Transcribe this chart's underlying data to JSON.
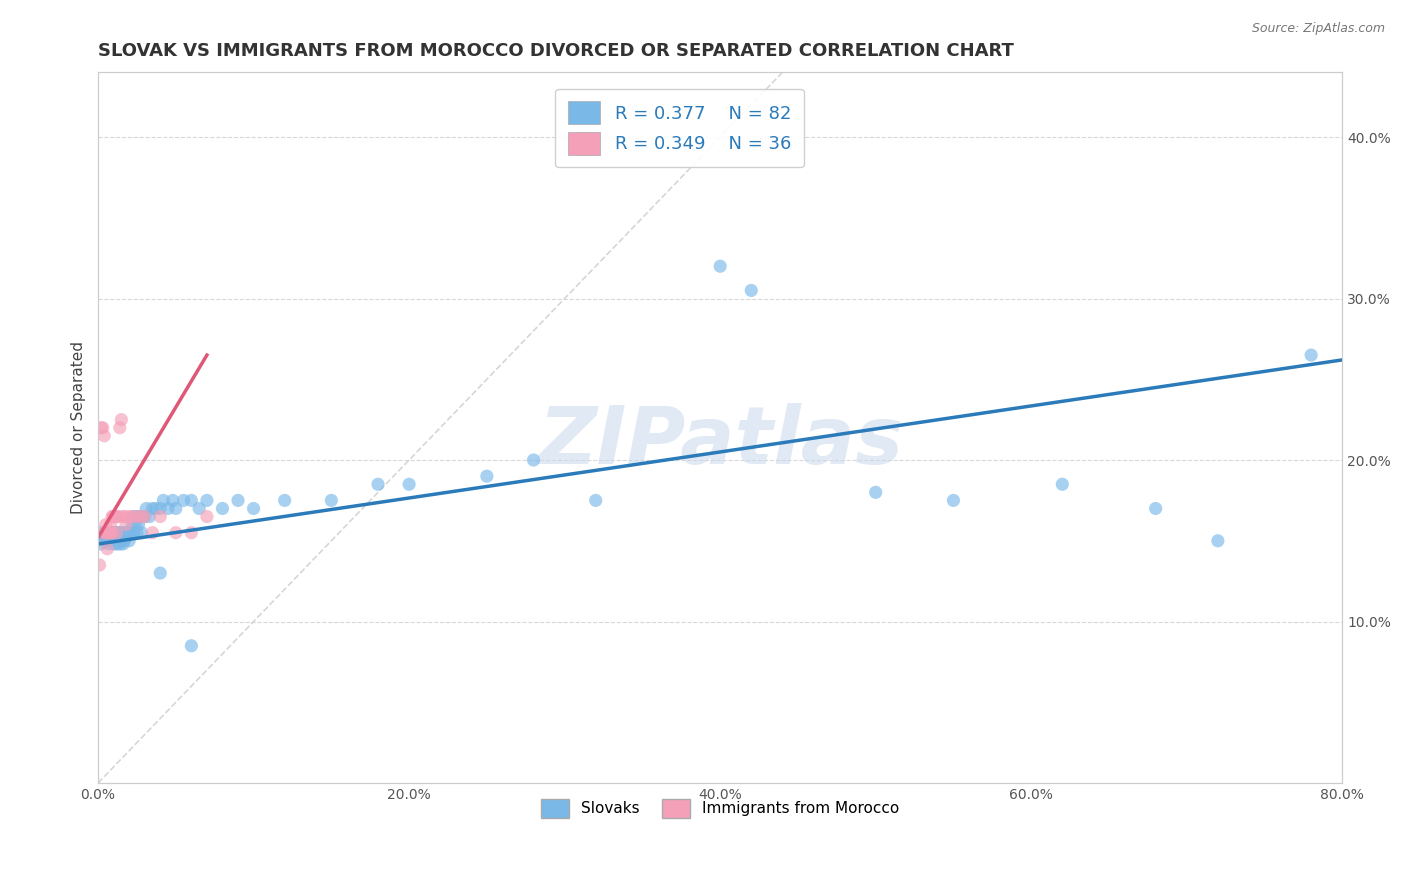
{
  "title": "SLOVAK VS IMMIGRANTS FROM MOROCCO DIVORCED OR SEPARATED CORRELATION CHART",
  "source_text": "Source: ZipAtlas.com",
  "ylabel": "Divorced or Separated",
  "xlim": [
    0,
    0.8
  ],
  "ylim": [
    0,
    0.44
  ],
  "xtick_labels": [
    "0.0%",
    "20.0%",
    "40.0%",
    "60.0%",
    "80.0%"
  ],
  "xtick_vals": [
    0.0,
    0.2,
    0.4,
    0.6,
    0.8
  ],
  "ytick_labels_right": [
    "10.0%",
    "20.0%",
    "30.0%",
    "40.0%"
  ],
  "ytick_vals": [
    0.1,
    0.2,
    0.3,
    0.4
  ],
  "blue_color": "#7ab8e8",
  "pink_color": "#f4a0b8",
  "blue_line_color": "#2b7bba",
  "pink_line_color": "#e05878",
  "ref_line_color": "#cccccc",
  "legend_label1": "Slovaks",
  "legend_label2": "Immigrants from Morocco",
  "watermark": "ZIPatlas",
  "blue_scatter_x": [
    0.001,
    0.002,
    0.003,
    0.004,
    0.005,
    0.005,
    0.006,
    0.007,
    0.007,
    0.008,
    0.008,
    0.009,
    0.009,
    0.01,
    0.01,
    0.01,
    0.011,
    0.011,
    0.012,
    0.012,
    0.013,
    0.013,
    0.013,
    0.014,
    0.014,
    0.015,
    0.015,
    0.016,
    0.016,
    0.017,
    0.017,
    0.018,
    0.018,
    0.019,
    0.02,
    0.02,
    0.021,
    0.022,
    0.022,
    0.023,
    0.023,
    0.024,
    0.025,
    0.025,
    0.026,
    0.027,
    0.028,
    0.029,
    0.03,
    0.031,
    0.033,
    0.035,
    0.037,
    0.04,
    0.042,
    0.045,
    0.048,
    0.05,
    0.055,
    0.06,
    0.065,
    0.07,
    0.08,
    0.09,
    0.1,
    0.12,
    0.15,
    0.18,
    0.2,
    0.25,
    0.28,
    0.32,
    0.4,
    0.42,
    0.5,
    0.55,
    0.62,
    0.68,
    0.72,
    0.78,
    0.04,
    0.06
  ],
  "blue_scatter_y": [
    0.155,
    0.148,
    0.152,
    0.15,
    0.15,
    0.155,
    0.155,
    0.148,
    0.155,
    0.15,
    0.155,
    0.152,
    0.155,
    0.148,
    0.15,
    0.155,
    0.15,
    0.155,
    0.148,
    0.155,
    0.15,
    0.152,
    0.155,
    0.148,
    0.155,
    0.15,
    0.155,
    0.148,
    0.155,
    0.15,
    0.155,
    0.152,
    0.155,
    0.155,
    0.15,
    0.155,
    0.155,
    0.155,
    0.16,
    0.155,
    0.165,
    0.16,
    0.155,
    0.165,
    0.16,
    0.165,
    0.155,
    0.165,
    0.165,
    0.17,
    0.165,
    0.17,
    0.17,
    0.17,
    0.175,
    0.17,
    0.175,
    0.17,
    0.175,
    0.175,
    0.17,
    0.175,
    0.17,
    0.175,
    0.17,
    0.175,
    0.175,
    0.185,
    0.185,
    0.19,
    0.2,
    0.175,
    0.32,
    0.305,
    0.18,
    0.175,
    0.185,
    0.17,
    0.15,
    0.265,
    0.13,
    0.085
  ],
  "pink_scatter_x": [
    0.001,
    0.002,
    0.003,
    0.004,
    0.004,
    0.005,
    0.005,
    0.006,
    0.006,
    0.007,
    0.007,
    0.008,
    0.008,
    0.009,
    0.009,
    0.01,
    0.01,
    0.011,
    0.012,
    0.012,
    0.013,
    0.014,
    0.015,
    0.016,
    0.017,
    0.018,
    0.02,
    0.022,
    0.025,
    0.028,
    0.03,
    0.035,
    0.04,
    0.05,
    0.06,
    0.07
  ],
  "pink_scatter_y": [
    0.135,
    0.22,
    0.22,
    0.215,
    0.155,
    0.155,
    0.16,
    0.155,
    0.145,
    0.155,
    0.155,
    0.16,
    0.155,
    0.155,
    0.165,
    0.165,
    0.165,
    0.165,
    0.165,
    0.155,
    0.165,
    0.22,
    0.225,
    0.165,
    0.165,
    0.16,
    0.165,
    0.165,
    0.165,
    0.165,
    0.165,
    0.155,
    0.165,
    0.155,
    0.155,
    0.165
  ],
  "blue_trend_x": [
    0.0,
    0.8
  ],
  "blue_trend_y": [
    0.148,
    0.262
  ],
  "pink_trend_x": [
    0.0,
    0.07
  ],
  "pink_trend_y": [
    0.152,
    0.265
  ],
  "ref_line_x": [
    0.0,
    0.44
  ],
  "ref_line_y": [
    0.0,
    0.44
  ],
  "background_color": "#ffffff",
  "grid_color": "#d8d8d8",
  "title_fontsize": 13,
  "axis_label_fontsize": 11,
  "tick_fontsize": 10,
  "legend_R1": "R = 0.377",
  "legend_N1": "N = 82",
  "legend_R2": "R = 0.349",
  "legend_N2": "N = 36"
}
